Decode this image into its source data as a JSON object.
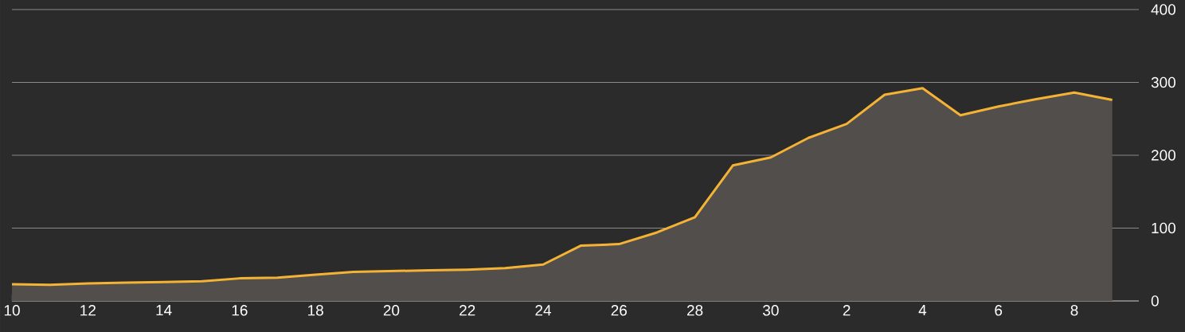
{
  "chart_data": {
    "type": "area",
    "categories": [
      "10",
      null,
      "12",
      null,
      "14",
      null,
      "16",
      null,
      "18",
      null,
      "20",
      null,
      "22",
      null,
      "24",
      null,
      "26",
      null,
      "28",
      null,
      "30",
      null,
      "2",
      null,
      "4",
      null,
      "6",
      null,
      "8",
      null
    ],
    "series": [
      {
        "color": "#f5b335",
        "values": [
          23,
          22,
          24,
          25,
          26,
          27,
          31,
          32,
          36,
          40,
          41,
          42,
          43,
          45,
          50,
          76,
          78,
          94,
          115,
          186,
          197,
          224,
          243,
          283,
          292,
          255,
          267,
          277,
          286,
          276
        ]
      }
    ],
    "ylim": [
      0,
      400
    ],
    "yticks": [
      0,
      100,
      200,
      300,
      400
    ],
    "grid": "y"
  }
}
